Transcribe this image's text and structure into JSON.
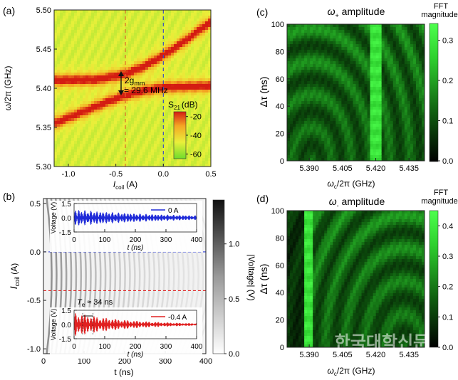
{
  "chart_data": [
    {
      "panel": "a",
      "type": "heatmap",
      "panel_label": "(a)",
      "xlabel": "I",
      "xlabel_sub": "coil",
      "xlabel_unit": "(A)",
      "ylabel": "ω/2π (GHz)",
      "xlim": [
        -1.15,
        0.5
      ],
      "ylim": [
        5.3,
        5.5
      ],
      "x_ticks": [
        -1.0,
        -0.5,
        0.0,
        0.5
      ],
      "x_tick_labels": [
        "-1.0",
        "-0.5",
        "0.0",
        "0.5"
      ],
      "y_ticks": [
        5.3,
        5.35,
        5.4,
        5.45,
        5.5
      ],
      "y_tick_labels": [
        "5.30",
        "5.35",
        "5.40",
        "5.45",
        "5.50"
      ],
      "dashed_lines_x": [
        -0.4,
        0.0
      ],
      "upper_branch": {
        "x": [
          -1.15,
          -0.7,
          -0.4,
          -0.2,
          0.0,
          0.2,
          0.5
        ],
        "y": [
          5.41,
          5.411,
          5.418,
          5.428,
          5.442,
          5.458,
          5.485
        ]
      },
      "lower_branch": {
        "x": [
          -1.15,
          -0.8,
          -0.6,
          -0.4,
          -0.2,
          0.0,
          0.5
        ],
        "y": [
          5.355,
          5.372,
          5.382,
          5.391,
          5.397,
          5.401,
          5.403
        ]
      },
      "annotation_line1": "2g",
      "annotation_line1_sub": "mm",
      "annotation_line2": "= 29.6 MHz",
      "colorbar": {
        "label": "S",
        "label_sub": "21",
        "label_unit": "(dB)",
        "ticks": [
          -20,
          -40,
          -60
        ],
        "tick_labels": [
          "-20",
          "-40",
          "-60"
        ],
        "range": [
          -65,
          -15
        ],
        "colors": [
          "#6fdc2c",
          "#e9f03a",
          "#f5a623",
          "#d41c12"
        ]
      }
    },
    {
      "panel": "b",
      "type": "heatmap",
      "panel_label": "(b)",
      "xlabel": "t (ns)",
      "ylabel": "I",
      "ylabel_sub": "coil",
      "ylabel_unit": "(A)",
      "xlim": [
        0,
        400
      ],
      "ylim": [
        -1.05,
        0.55
      ],
      "x_ticks": [
        0,
        100,
        200,
        300,
        400
      ],
      "x_tick_labels": [
        "0",
        "100",
        "200",
        "300",
        "400"
      ],
      "y_ticks": [
        0.5,
        0.0,
        -0.5,
        -1.0
      ],
      "y_tick_labels": [
        "0.5",
        "0.0",
        "-0.5",
        "-1.0"
      ],
      "dashed_lines_y": [
        {
          "value": 0.0,
          "color": "#2f3fd8"
        },
        {
          "value": -0.4,
          "color": "#e02626"
        }
      ],
      "colorbar": {
        "label": "|Voltage| (V)",
        "ticks": [
          0.0,
          0.5,
          1.0
        ],
        "tick_labels": [
          "0.0",
          "0.5",
          "1.0"
        ],
        "range": [
          0,
          1.4
        ],
        "colors": [
          "#ffffff",
          "#9a9a9a",
          "#111111"
        ]
      },
      "insets": [
        {
          "legend": "0 A",
          "color": "#1f2bd8",
          "xlabel": "t (ns)",
          "ylabel": "Voltage (V)",
          "xlim": [
            0,
            400
          ],
          "ylim": [
            -1.5,
            1.5
          ],
          "x_ticks": [
            0,
            100,
            200,
            300,
            400
          ],
          "x_tick_labels": [
            "0",
            "100",
            "200",
            "300",
            "400"
          ],
          "y_ticks": [
            1.5,
            0.0,
            -1.5
          ],
          "y_tick_labels": [
            "1.5",
            "0.0",
            "-1.5"
          ],
          "initial_amplitude": 0.9,
          "decay_ns": 300,
          "beat_period_ns": 18
        },
        {
          "legend": "-0.4 A",
          "color": "#e02020",
          "xlabel": "t (ns)",
          "ylabel": "Voltage (V)",
          "xlim": [
            0,
            400
          ],
          "ylim": [
            -1.5,
            1.5
          ],
          "x_ticks": [
            0,
            100,
            200,
            300,
            400
          ],
          "x_tick_labels": [
            "0",
            "100",
            "200",
            "300",
            "400"
          ],
          "y_ticks": [
            1.5,
            0.0,
            -1.5
          ],
          "y_tick_labels": [
            "1.5",
            "0.0",
            "-1.5"
          ],
          "initial_amplitude": 1.3,
          "decay_ns": 170,
          "beat_period_ns": 34,
          "annotation": "T",
          "annotation_sub": "e",
          "annotation_value": "≈ 34 ns"
        }
      ]
    },
    {
      "panel": "c",
      "type": "heatmap",
      "panel_label": "(c)",
      "title_prefix": "ω",
      "title_sub": "+",
      "title_suffix": " amplitude",
      "xlabel": "ω",
      "xlabel_sub": "c",
      "xlabel_unit": "/2π (GHz)",
      "ylabel": "Δτ (ns)",
      "xlim": [
        5.38,
        5.442
      ],
      "ylim": [
        0,
        100
      ],
      "x_ticks": [
        5.39,
        5.405,
        5.42,
        5.435
      ],
      "x_tick_labels": [
        "5.390",
        "5.405",
        "5.420",
        "5.435"
      ],
      "y_ticks": [
        0,
        20,
        40,
        60,
        80,
        100
      ],
      "y_tick_labels": [
        "0",
        "20",
        "40",
        "60",
        "80",
        "100"
      ],
      "bright_column_x": 5.42,
      "colorbar": {
        "label": "FFT",
        "label_line2": "magnitude",
        "ticks": [
          0.0,
          0.1,
          0.2,
          0.3
        ],
        "tick_labels": [
          "0.0",
          "0.1",
          "0.2",
          "0.3"
        ],
        "range": [
          0,
          0.34
        ],
        "colors": [
          "#000000",
          "#0f5c0f",
          "#2ed02e",
          "#4dff4d"
        ]
      }
    },
    {
      "panel": "d",
      "type": "heatmap",
      "panel_label": "(d)",
      "title_prefix": "ω",
      "title_sub": "-",
      "title_suffix": " amplitude",
      "xlabel": "ω",
      "xlabel_sub": "c",
      "xlabel_unit": "/2π (GHz)",
      "ylabel": "Δτ (ns)",
      "xlim": [
        5.38,
        5.442
      ],
      "ylim": [
        0,
        100
      ],
      "x_ticks": [
        5.39,
        5.405,
        5.42,
        5.435
      ],
      "x_tick_labels": [
        "5.390",
        "5.405",
        "5.420",
        "5.435"
      ],
      "y_ticks": [
        0,
        20,
        40,
        60,
        80,
        100
      ],
      "y_tick_labels": [
        "0",
        "20",
        "40",
        "60",
        "80",
        "100"
      ],
      "bright_column_x": 5.39,
      "colorbar": {
        "label": "FFT",
        "label_line2": "magnitude",
        "ticks": [
          0.0,
          0.1,
          0.2,
          0.3,
          0.4
        ],
        "tick_labels": [
          "0.0",
          "0.1",
          "0.2",
          "0.3",
          "0.4"
        ],
        "range": [
          0,
          0.45
        ],
        "colors": [
          "#000000",
          "#0f5c0f",
          "#2ed02e",
          "#4dff4d"
        ]
      }
    }
  ],
  "watermark": "한국대학신문"
}
